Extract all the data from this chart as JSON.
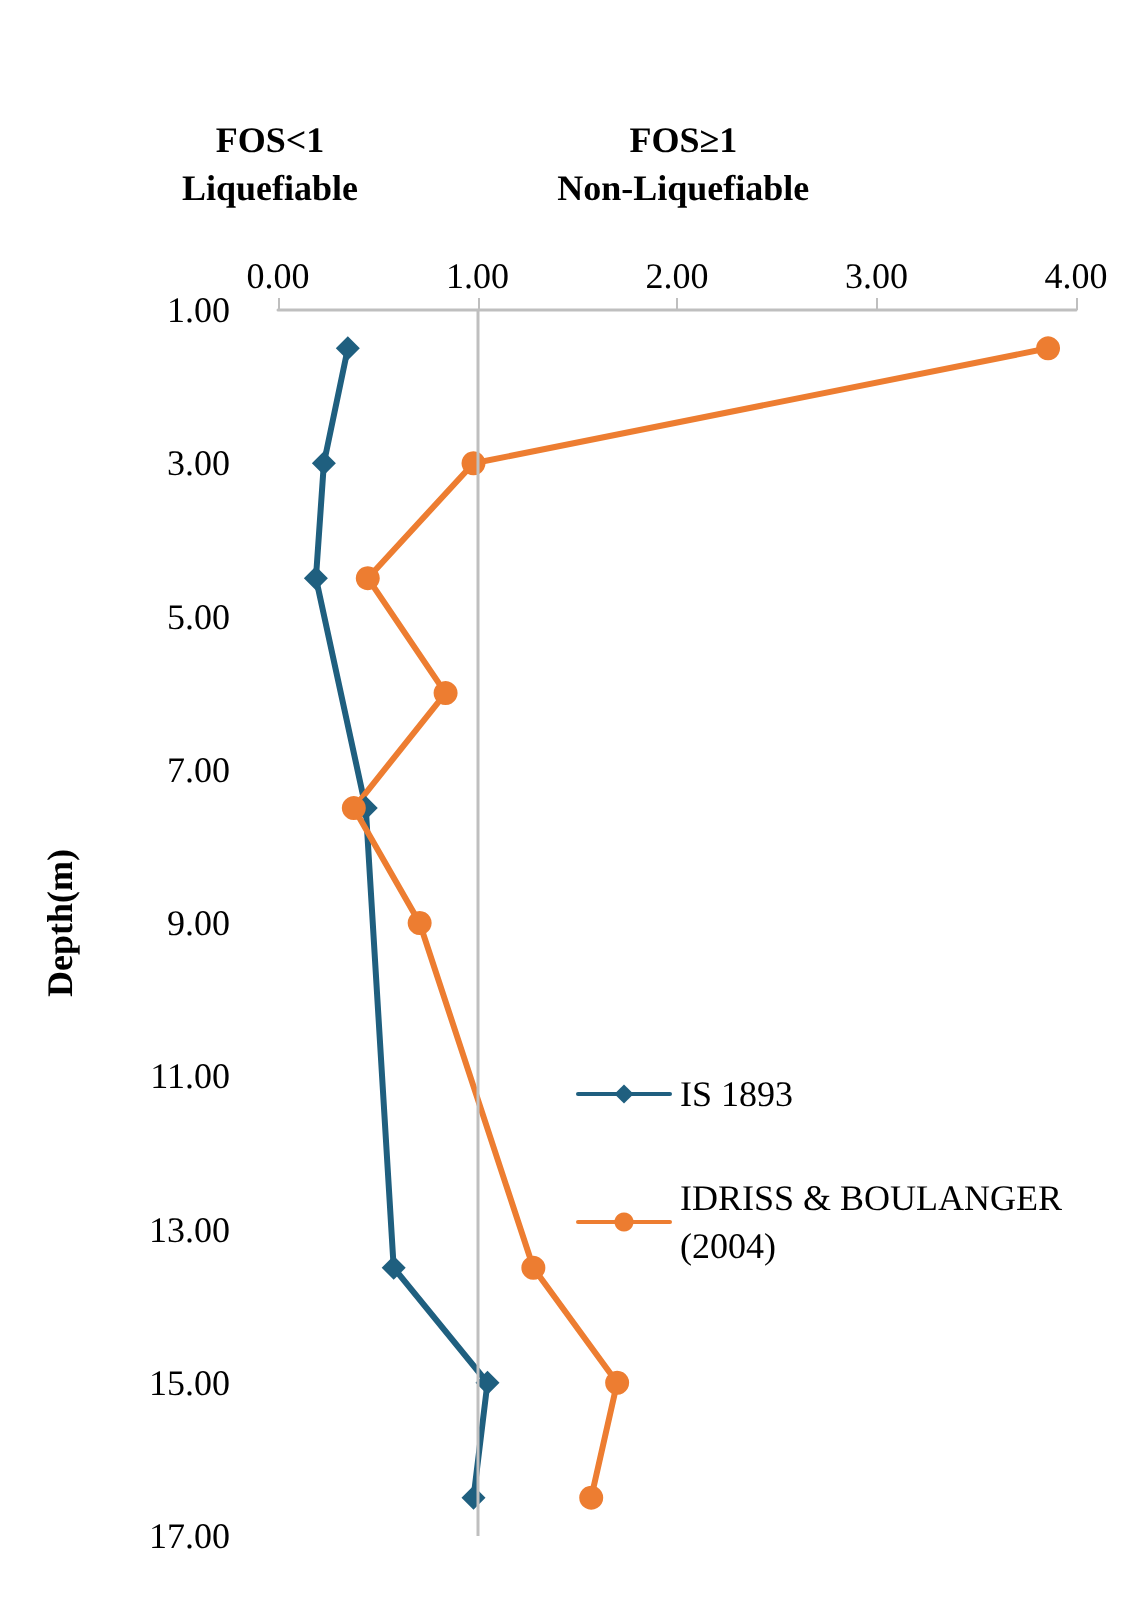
{
  "chart_data": {
    "type": "line",
    "ylabel": "Depth(m)",
    "annotations": [
      "FOS<1\nLiquefiable",
      "FOS≥1\nNon-Liquefiable"
    ],
    "xlim": [
      0,
      4
    ],
    "xticks": [
      {
        "value": 0,
        "label": "0.00"
      },
      {
        "value": 1,
        "label": "1.00"
      },
      {
        "value": 2,
        "label": "2.00"
      },
      {
        "value": 3,
        "label": "3.00"
      },
      {
        "value": 4,
        "label": "4.00"
      }
    ],
    "ylim": [
      17,
      1
    ],
    "yticks": [
      {
        "value": 1,
        "label": "1.00"
      },
      {
        "value": 3,
        "label": "3.00"
      },
      {
        "value": 5,
        "label": "5.00"
      },
      {
        "value": 7,
        "label": "7.00"
      },
      {
        "value": 9,
        "label": "9.00"
      },
      {
        "value": 11,
        "label": "11.00"
      },
      {
        "value": 13,
        "label": "13.00"
      },
      {
        "value": 15,
        "label": "15.00"
      },
      {
        "value": 17,
        "label": "17.00"
      }
    ],
    "series": [
      {
        "name": "IS 1893",
        "color": "#1f5f7f",
        "marker": "diamond",
        "x": [
          0.35,
          0.23,
          0.19,
          0.44,
          0.58,
          1.05,
          0.98
        ],
        "values": [
          1.5,
          3,
          4.5,
          7.5,
          13.5,
          15,
          16.5
        ]
      },
      {
        "name": "IDRISS & BOULANGER (2004)",
        "color": "#ed7d31",
        "marker": "circle",
        "x": [
          3.86,
          0.98,
          0.45,
          0.84,
          0.38,
          0.71,
          1.28,
          1.7,
          1.57
        ],
        "values": [
          1.5,
          3,
          4.5,
          6,
          7.5,
          9,
          13.5,
          15,
          16.5
        ]
      }
    ],
    "ref_lines": [
      {
        "axis": "x",
        "value": 1,
        "color": "#bfbfbf"
      }
    ],
    "grid": false,
    "legend": "right"
  }
}
